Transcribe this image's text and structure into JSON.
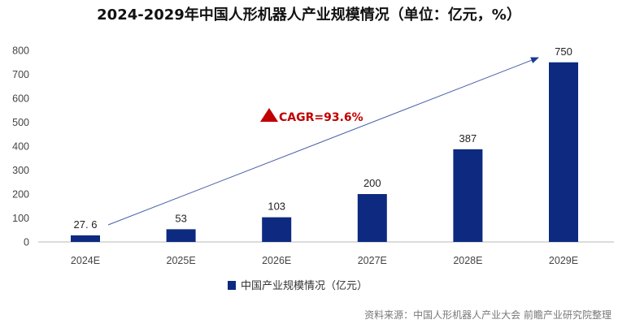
{
  "chart_data": {
    "type": "bar",
    "title": "2024-2029年中国人形机器人产业规模情况（单位：亿元，%）",
    "categories": [
      "2024E",
      "2025E",
      "2026E",
      "2027E",
      "2028E",
      "2029E"
    ],
    "series": [
      {
        "name": "中国产业规模情况（亿元）",
        "values": [
          27.6,
          53,
          103,
          200,
          387,
          750
        ],
        "labels": [
          "27. 6",
          "53",
          "103",
          "200",
          "387",
          "750"
        ]
      }
    ],
    "ylim": [
      0,
      800
    ],
    "yticks": [
      0,
      100,
      200,
      300,
      400,
      500,
      600,
      700,
      800
    ],
    "grid": false,
    "legend": "bottom",
    "annotation": "CAGR=93.6%",
    "source": "资料来源：中国人形机器人产业大会 前瞻产业研究院整理",
    "colors": {
      "bar": "#0d2a80",
      "arrow": "#4a5fa8",
      "cagr": "#c00000"
    }
  }
}
